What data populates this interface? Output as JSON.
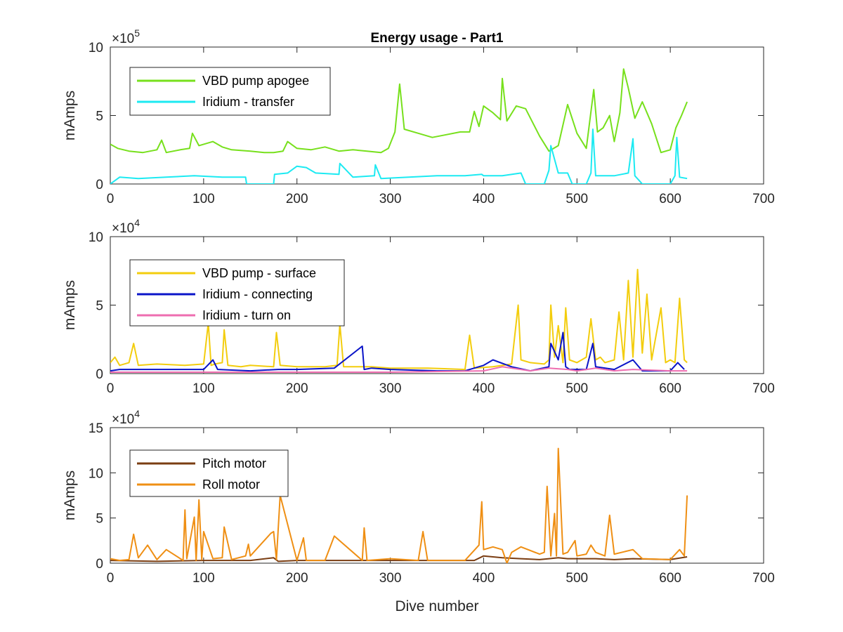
{
  "chart_data": [
    {
      "type": "line",
      "title": "Energy usage - Part1",
      "xlabel": "",
      "ylabel": "mAmps",
      "xlim": [
        0,
        700
      ],
      "ylim": [
        0,
        1000000
      ],
      "exponent_label": "×10",
      "exponent_power": "5",
      "xticks": [
        "0",
        "100",
        "200",
        "300",
        "400",
        "500",
        "600",
        "700"
      ],
      "yticks": [
        "0",
        "5",
        "10"
      ],
      "ytick_values": [
        0,
        500000,
        1000000
      ],
      "legend_position": "top-left",
      "series": [
        {
          "name": "VBD pump apogee",
          "color": "#77e01c",
          "x": [
            0,
            8,
            20,
            35,
            50,
            55,
            60,
            75,
            85,
            88,
            95,
            110,
            120,
            130,
            150,
            165,
            175,
            185,
            190,
            200,
            215,
            230,
            245,
            260,
            275,
            290,
            298,
            305,
            310,
            315,
            330,
            345,
            360,
            375,
            385,
            390,
            395,
            400,
            410,
            418,
            420,
            425,
            435,
            445,
            460,
            470,
            480,
            490,
            500,
            510,
            518,
            522,
            528,
            535,
            540,
            546,
            550,
            555,
            562,
            570,
            580,
            590,
            600,
            606,
            612,
            618
          ],
          "y": [
            290000,
            260000,
            240000,
            230000,
            250000,
            320000,
            230000,
            250000,
            260000,
            370000,
            280000,
            310000,
            270000,
            250000,
            240000,
            230000,
            230000,
            240000,
            310000,
            260000,
            250000,
            270000,
            240000,
            250000,
            240000,
            230000,
            260000,
            380000,
            730000,
            400000,
            370000,
            340000,
            360000,
            380000,
            380000,
            530000,
            420000,
            570000,
            520000,
            470000,
            770000,
            460000,
            570000,
            550000,
            350000,
            240000,
            280000,
            580000,
            370000,
            260000,
            690000,
            380000,
            410000,
            500000,
            310000,
            520000,
            840000,
            700000,
            480000,
            600000,
            440000,
            230000,
            250000,
            410000,
            500000,
            600000
          ]
        },
        {
          "name": "Iridium - transfer",
          "color": "#1ceaf2",
          "x": [
            0,
            10,
            30,
            60,
            90,
            120,
            145,
            146,
            175,
            176,
            190,
            200,
            210,
            220,
            245,
            246,
            260,
            283,
            284,
            290,
            320,
            350,
            380,
            398,
            400,
            420,
            440,
            445,
            465,
            470,
            472,
            480,
            490,
            495,
            510,
            515,
            517,
            520,
            540,
            555,
            560,
            562,
            570,
            600,
            605,
            607,
            610,
            618
          ],
          "y": [
            0,
            50000,
            40000,
            50000,
            60000,
            50000,
            50000,
            0,
            0,
            70000,
            80000,
            130000,
            120000,
            80000,
            70000,
            150000,
            50000,
            60000,
            140000,
            40000,
            50000,
            60000,
            60000,
            70000,
            60000,
            60000,
            80000,
            0,
            0,
            100000,
            280000,
            80000,
            80000,
            0,
            0,
            80000,
            400000,
            60000,
            60000,
            80000,
            330000,
            60000,
            0,
            0,
            60000,
            340000,
            50000,
            40000
          ]
        }
      ]
    },
    {
      "type": "line",
      "title": "",
      "xlabel": "",
      "ylabel": "mAmps",
      "xlim": [
        0,
        700
      ],
      "ylim": [
        0,
        100000
      ],
      "exponent_label": "×10",
      "exponent_power": "4",
      "xticks": [
        "0",
        "100",
        "200",
        "300",
        "400",
        "500",
        "600",
        "700"
      ],
      "yticks": [
        "0",
        "5",
        "10"
      ],
      "ytick_values": [
        0,
        50000,
        100000
      ],
      "legend_position": "top-left",
      "series": [
        {
          "name": "VBD pump - surface",
          "color": "#f3cd0d",
          "x": [
            0,
            5,
            10,
            20,
            25,
            30,
            50,
            80,
            100,
            105,
            108,
            112,
            120,
            122,
            126,
            140,
            150,
            175,
            178,
            182,
            200,
            230,
            243,
            246,
            250,
            280,
            300,
            340,
            380,
            385,
            390,
            410,
            430,
            437,
            440,
            450,
            465,
            470,
            472,
            476,
            480,
            485,
            488,
            492,
            500,
            510,
            515,
            520,
            525,
            530,
            540,
            545,
            550,
            555,
            560,
            565,
            570,
            575,
            580,
            590,
            595,
            600,
            605,
            610,
            615,
            618
          ],
          "y": [
            8000,
            12000,
            6000,
            8000,
            22000,
            6000,
            7000,
            6000,
            7000,
            37000,
            6000,
            7000,
            8000,
            32000,
            6000,
            5000,
            6000,
            5000,
            30000,
            6000,
            5000,
            5000,
            6000,
            36000,
            5000,
            5000,
            4000,
            4000,
            3000,
            28000,
            4000,
            5000,
            7000,
            50000,
            10000,
            8000,
            7000,
            10000,
            50000,
            12000,
            35000,
            8000,
            48000,
            10000,
            8000,
            12000,
            40000,
            10000,
            12000,
            8000,
            10000,
            45000,
            10000,
            68000,
            12000,
            76000,
            15000,
            58000,
            10000,
            48000,
            8000,
            10000,
            8000,
            55000,
            10000,
            8000
          ]
        },
        {
          "name": "Iridium - connecting",
          "color": "#0a14c8",
          "x": [
            0,
            10,
            50,
            100,
            110,
            115,
            150,
            180,
            200,
            240,
            270,
            272,
            280,
            300,
            350,
            380,
            400,
            410,
            430,
            450,
            470,
            472,
            480,
            485,
            488,
            492,
            510,
            517,
            520,
            540,
            560,
            570,
            600,
            608,
            615
          ],
          "y": [
            2000,
            3000,
            3000,
            3000,
            10000,
            3000,
            2000,
            3000,
            3000,
            4000,
            20000,
            3000,
            4000,
            3000,
            2000,
            2000,
            6000,
            10000,
            5000,
            2000,
            5000,
            22000,
            10000,
            30000,
            5000,
            3000,
            3000,
            22000,
            5000,
            3000,
            10000,
            2000,
            2000,
            8000,
            3000
          ]
        },
        {
          "name": "Iridium - turn on",
          "color": "#ee6eb0",
          "x": [
            0,
            100,
            200,
            300,
            400,
            420,
            450,
            470,
            490,
            500,
            520,
            540,
            560,
            600,
            618
          ],
          "y": [
            1000,
            1000,
            1000,
            1000,
            2000,
            5000,
            2000,
            4000,
            3000,
            2000,
            4000,
            2000,
            3000,
            2000,
            2000
          ]
        }
      ]
    },
    {
      "type": "line",
      "title": "",
      "xlabel": "Dive number",
      "ylabel": "mAmps",
      "xlim": [
        0,
        700
      ],
      "ylim": [
        0,
        150000
      ],
      "exponent_label": "×10",
      "exponent_power": "4",
      "xticks": [
        "0",
        "100",
        "200",
        "300",
        "400",
        "500",
        "600",
        "700"
      ],
      "yticks": [
        "0",
        "5",
        "10",
        "15"
      ],
      "ytick_values": [
        0,
        50000,
        100000,
        150000
      ],
      "legend_position": "top-left",
      "series": [
        {
          "name": "Pitch motor",
          "color": "#7a3d12",
          "x": [
            0,
            50,
            100,
            150,
            175,
            180,
            200,
            250,
            300,
            350,
            390,
            400,
            420,
            440,
            460,
            470,
            480,
            490,
            520,
            540,
            560,
            600,
            618
          ],
          "y": [
            3000,
            2000,
            3000,
            3000,
            6000,
            2000,
            3000,
            3000,
            3000,
            3000,
            3000,
            8000,
            6000,
            5000,
            4000,
            5000,
            6000,
            5000,
            5000,
            4000,
            5000,
            4000,
            7000
          ]
        },
        {
          "name": "Roll motor",
          "color": "#ef8f14",
          "x": [
            0,
            10,
            20,
            25,
            30,
            40,
            50,
            60,
            78,
            80,
            82,
            90,
            92,
            95,
            98,
            100,
            110,
            120,
            122,
            130,
            145,
            148,
            150,
            172,
            175,
            178,
            182,
            200,
            207,
            210,
            230,
            240,
            270,
            272,
            275,
            300,
            330,
            335,
            340,
            380,
            395,
            398,
            400,
            410,
            420,
            425,
            430,
            440,
            460,
            465,
            468,
            472,
            476,
            478,
            480,
            485,
            490,
            498,
            500,
            510,
            515,
            520,
            530,
            535,
            540,
            560,
            570,
            600,
            610,
            615,
            618
          ],
          "y": [
            5000,
            3000,
            4000,
            32000,
            6000,
            20000,
            4000,
            15000,
            3000,
            59000,
            5000,
            51000,
            3000,
            70000,
            4000,
            35000,
            5000,
            6000,
            40000,
            4000,
            8000,
            21000,
            8000,
            33000,
            35000,
            4000,
            75000,
            3000,
            28000,
            3000,
            3000,
            30000,
            3000,
            39000,
            3000,
            5000,
            3000,
            35000,
            3000,
            3000,
            20000,
            68000,
            15000,
            18000,
            15000,
            0,
            12000,
            18000,
            10000,
            12000,
            85000,
            8000,
            55000,
            8000,
            127000,
            10000,
            12000,
            25000,
            8000,
            10000,
            20000,
            12000,
            8000,
            53000,
            10000,
            15000,
            5000,
            4000,
            15000,
            8000,
            75000
          ]
        }
      ]
    }
  ]
}
